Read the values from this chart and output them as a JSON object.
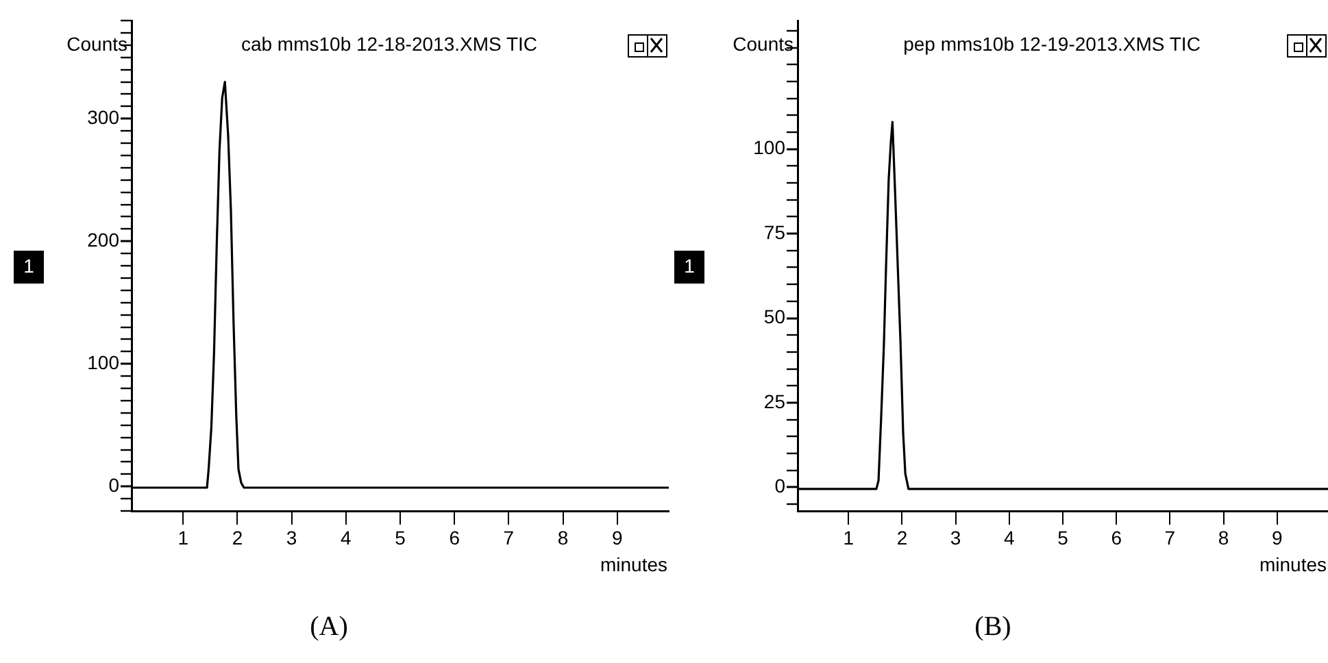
{
  "chart_data": [
    {
      "type": "line",
      "title": "cab mms10b 12-18-2013.XMS TIC",
      "xlabel": "minutes",
      "ylabel": "Counts",
      "annotations": [
        "1",
        "(A)"
      ],
      "legend": false,
      "marker": "none",
      "series": [
        {
          "color": "#000000",
          "x": [
            0.05,
            1.44,
            1.47,
            1.52,
            1.57,
            1.62,
            1.67,
            1.72,
            1.77,
            1.79,
            1.83,
            1.88,
            1.93,
            1.98,
            2.02,
            2.07,
            2.12,
            9.95
          ],
          "values": [
            -1,
            -1,
            14,
            48,
            109,
            198,
            274,
            317,
            330,
            330,
            286,
            226,
            133,
            57,
            14,
            3,
            -1,
            -1
          ]
        }
      ],
      "xlim": [
        0.05,
        9.95
      ],
      "xticks": [
        1,
        2,
        3,
        4,
        5,
        6,
        7,
        8,
        9
      ],
      "ylim": [
        -20,
        380
      ],
      "yticks": [
        {
          "value": -20,
          "label": null
        },
        {
          "value": -10,
          "label": null
        },
        0,
        {
          "value": 10,
          "label": null
        },
        {
          "value": 20,
          "label": null
        },
        {
          "value": 30,
          "label": null
        },
        {
          "value": 40,
          "label": null
        },
        {
          "value": 50,
          "label": null
        },
        {
          "value": 60,
          "label": null
        },
        {
          "value": 70,
          "label": null
        },
        {
          "value": 80,
          "label": null
        },
        {
          "value": 90,
          "label": null
        },
        100,
        {
          "value": 110,
          "label": null
        },
        {
          "value": 120,
          "label": null
        },
        {
          "value": 130,
          "label": null
        },
        {
          "value": 140,
          "label": null
        },
        {
          "value": 150,
          "label": null
        },
        {
          "value": 160,
          "label": null
        },
        {
          "value": 170,
          "label": null
        },
        {
          "value": 180,
          "label": null
        },
        {
          "value": 190,
          "label": null
        },
        200,
        {
          "value": 210,
          "label": null
        },
        {
          "value": 220,
          "label": null
        },
        {
          "value": 230,
          "label": null
        },
        {
          "value": 240,
          "label": null
        },
        {
          "value": 250,
          "label": null
        },
        {
          "value": 260,
          "label": null
        },
        {
          "value": 270,
          "label": null
        },
        {
          "value": 280,
          "label": null
        },
        {
          "value": 290,
          "label": null
        },
        300,
        {
          "value": 310,
          "label": null
        },
        {
          "value": 320,
          "label": null
        },
        {
          "value": 330,
          "label": null
        },
        {
          "value": 340,
          "label": null
        },
        {
          "value": 350,
          "label": null
        },
        {
          "value": 360,
          "label": null
        },
        {
          "value": 370,
          "label": null
        },
        {
          "value": 380,
          "label": null
        }
      ]
    },
    {
      "type": "line",
      "title": "pep mms10b 12-19-2013.XMS TIC",
      "xlabel": "minutes",
      "ylabel": "Counts",
      "annotations": [
        "1",
        "(B)"
      ],
      "legend": false,
      "marker": "none",
      "series": [
        {
          "color": "#000000",
          "x": [
            0.05,
            1.52,
            1.56,
            1.61,
            1.66,
            1.7,
            1.75,
            1.79,
            1.82,
            1.87,
            1.92,
            1.97,
            2.02,
            2.06,
            2.12,
            9.95
          ],
          "values": [
            -0.5,
            -0.5,
            2,
            21,
            42,
            65,
            91,
            102,
            108,
            87,
            65,
            43,
            16,
            4,
            -0.5,
            -0.5
          ]
        }
      ],
      "xlim": [
        0.05,
        9.95
      ],
      "xticks": [
        1,
        2,
        3,
        4,
        5,
        6,
        7,
        8,
        9
      ],
      "ylim": [
        -7,
        138
      ],
      "yticks": [
        {
          "value": -5,
          "label": null
        },
        0,
        {
          "value": 5,
          "label": null
        },
        {
          "value": 10,
          "label": null
        },
        {
          "value": 15,
          "label": null
        },
        {
          "value": 20,
          "label": null
        },
        25,
        {
          "value": 30,
          "label": null
        },
        {
          "value": 35,
          "label": null
        },
        {
          "value": 40,
          "label": null
        },
        {
          "value": 45,
          "label": null
        },
        50,
        {
          "value": 55,
          "label": null
        },
        {
          "value": 60,
          "label": null
        },
        {
          "value": 65,
          "label": null
        },
        {
          "value": 70,
          "label": null
        },
        75,
        {
          "value": 80,
          "label": null
        },
        {
          "value": 85,
          "label": null
        },
        {
          "value": 90,
          "label": null
        },
        {
          "value": 95,
          "label": null
        },
        100,
        {
          "value": 105,
          "label": null
        },
        {
          "value": 110,
          "label": null
        },
        {
          "value": 115,
          "label": null
        },
        {
          "value": 120,
          "label": null
        },
        {
          "value": 125,
          "label": null
        },
        {
          "value": 130,
          "label": null
        },
        {
          "value": 135,
          "label": null
        }
      ]
    }
  ]
}
